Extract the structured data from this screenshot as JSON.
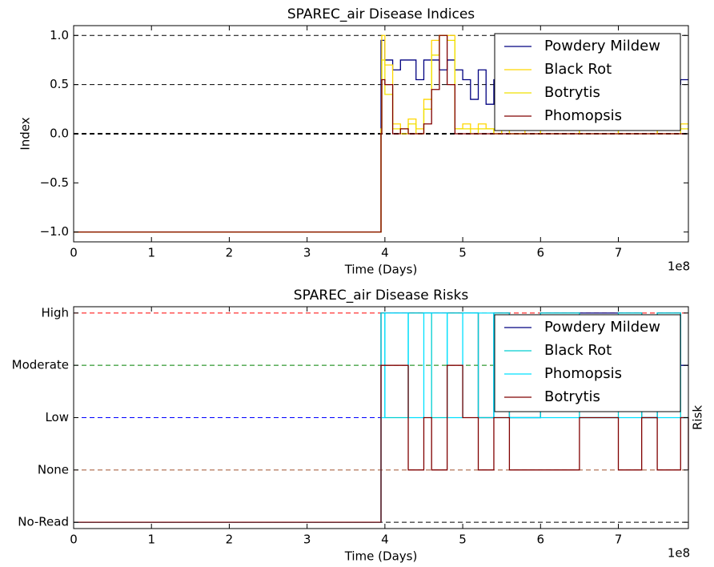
{
  "chart_data": [
    {
      "type": "step",
      "title": "SPAREC_air Disease Indices",
      "xlabel": "Time (Days)",
      "ylabel": "Index",
      "x_offset_label": "1e8",
      "x": [
        0,
        3.95,
        3.96,
        4.0,
        4.1,
        4.2,
        4.3,
        4.4,
        4.5,
        4.6,
        4.7,
        4.8,
        4.9,
        5.0,
        5.1,
        5.2,
        5.3,
        5.4,
        5.5,
        5.6,
        5.8,
        6.0,
        6.5,
        7.0,
        7.5,
        7.8,
        7.9
      ],
      "series": [
        {
          "name": "Powdery Mildew",
          "color": "#000080",
          "values": [
            -1,
            0.95,
            0.95,
            0.75,
            0.65,
            0.75,
            0.75,
            0.55,
            0.75,
            0.75,
            0.65,
            0.75,
            0.65,
            0.55,
            0.35,
            0.65,
            0.3,
            0.55,
            0.5,
            0.45,
            0.5,
            0.55,
            0.5,
            0.55,
            0.5,
            0.55,
            0.55
          ]
        },
        {
          "name": "Black Rot",
          "color": "#ffd700",
          "values": [
            -1,
            0.05,
            1.0,
            0.7,
            0.1,
            0,
            0.15,
            0.05,
            0.35,
            0.95,
            1.0,
            1.0,
            0.05,
            0.1,
            0.05,
            0.1,
            0.05,
            0,
            0.05,
            0,
            0.05,
            0,
            0.05,
            0,
            0.05,
            0.1,
            0.1
          ]
        },
        {
          "name": "Botrytis",
          "color": "#f0e000",
          "values": [
            -1,
            0,
            0.75,
            0.4,
            0.05,
            0.05,
            0.1,
            0,
            0.25,
            0.8,
            1.0,
            0.95,
            0.05,
            0.05,
            0,
            0.05,
            0.05,
            0,
            0.05,
            0,
            0,
            0.05,
            0,
            0.05,
            0,
            0.05,
            0.05
          ]
        },
        {
          "name": "Phomopsis",
          "color": "#800000",
          "values": [
            -1,
            0,
            0.55,
            0.5,
            0,
            0.05,
            0,
            0,
            0.1,
            0.45,
            1.0,
            0.5,
            0,
            0,
            0,
            0,
            0,
            0,
            0,
            0,
            0,
            0,
            0,
            0,
            0,
            0,
            0
          ]
        }
      ],
      "reference_lines": [
        {
          "value": 1,
          "color": "#000000"
        },
        {
          "value": 0.5,
          "color": "#000000"
        },
        {
          "value": 0,
          "color": "#000000"
        }
      ],
      "xlim": [
        0,
        7.9
      ],
      "ylim": [
        -1.1,
        1.1
      ],
      "xticks": [
        0,
        1,
        2,
        3,
        4,
        5,
        6,
        7
      ],
      "yticks": [
        {
          "value": -1,
          "label": "−1.0"
        },
        {
          "value": -0.5,
          "label": "−0.5"
        },
        {
          "value": 0,
          "label": "0.0"
        },
        {
          "value": 0.5,
          "label": "0.5"
        },
        {
          "value": 1,
          "label": "1.0"
        }
      ],
      "legend": "upper right"
    },
    {
      "type": "step",
      "title": "SPAREC_air Disease Risks",
      "xlabel": "Time (Days)",
      "y2label": "Risk",
      "x_offset_label": "1e8",
      "x": [
        0,
        3.95,
        4.0,
        4.3,
        4.5,
        4.6,
        4.8,
        5.0,
        5.2,
        5.4,
        5.6,
        6.0,
        6.5,
        7.0,
        7.3,
        7.5,
        7.8,
        7.9
      ],
      "series": [
        {
          "name": "Powdery Mildew",
          "color": "#000080",
          "values": [
            0,
            4,
            4,
            4,
            4,
            4,
            4,
            4,
            2,
            4,
            2,
            4,
            4,
            4,
            2,
            4,
            3,
            3
          ]
        },
        {
          "name": "Black Rot",
          "color": "#00ced1",
          "values": [
            0,
            4,
            2,
            4,
            4,
            2,
            4,
            4,
            2,
            4,
            2,
            4,
            2,
            4,
            2,
            4,
            2,
            2
          ]
        },
        {
          "name": "Phomopsis",
          "color": "#00e0ff",
          "values": [
            0,
            2,
            4,
            2,
            4,
            4,
            2,
            4,
            4,
            2,
            2,
            2,
            2,
            2,
            2,
            2,
            2,
            2
          ]
        },
        {
          "name": "Botrytis",
          "color": "#800000",
          "values": [
            0,
            3,
            3,
            1,
            2,
            1,
            3,
            2,
            1,
            2,
            1,
            1,
            2,
            1,
            2,
            1,
            2,
            1
          ]
        }
      ],
      "reference_lines": [
        {
          "value": 4,
          "color": "#ff0000"
        },
        {
          "value": 3,
          "color": "#008000"
        },
        {
          "value": 2,
          "color": "#0000ff"
        },
        {
          "value": 1,
          "color": "#a0522d"
        },
        {
          "value": 0,
          "color": "#000000"
        }
      ],
      "xlim": [
        0,
        7.9
      ],
      "ylim": [
        -0.12,
        4.12
      ],
      "xticks": [
        0,
        1,
        2,
        3,
        4,
        5,
        6,
        7
      ],
      "yticks": [
        {
          "value": 0,
          "label": "No-Read"
        },
        {
          "value": 1,
          "label": "None"
        },
        {
          "value": 2,
          "label": "Low"
        },
        {
          "value": 3,
          "label": "Moderate"
        },
        {
          "value": 4,
          "label": "High"
        }
      ],
      "legend": "upper right"
    }
  ]
}
